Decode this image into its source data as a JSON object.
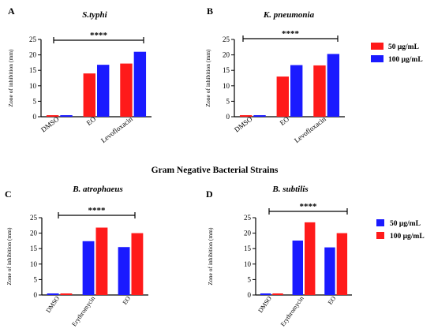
{
  "section_title": "Gram Negative Bacterial Strains",
  "colors": {
    "red": "#ff1a1a",
    "blue": "#1a1aff"
  },
  "legends": [
    {
      "entries": [
        {
          "label": "50 μg/mL",
          "color": "#ff1a1a"
        },
        {
          "label": "100 μg/mL",
          "color": "#1a1aff"
        }
      ]
    },
    {
      "entries": [
        {
          "label": "50 μg/mL",
          "color": "#1a1aff"
        },
        {
          "label": "100 μg/mL",
          "color": "#ff1a1a"
        }
      ]
    }
  ],
  "chart_data": [
    {
      "panel": "A",
      "title": "S.typhi",
      "type": "bar",
      "categories": [
        "DMSO",
        "EO",
        "Levofloxacin"
      ],
      "series": [
        {
          "name": "50 μg/mL",
          "color": "#ff1a1a",
          "values": [
            0.5,
            14,
            17.2
          ]
        },
        {
          "name": "100 μg/mL",
          "color": "#1a1aff",
          "values": [
            0.5,
            16.8,
            21
          ]
        }
      ],
      "ylabel": "Zone of inhibition (mm)",
      "ylim": [
        0,
        25
      ],
      "yticks": [
        0,
        5,
        10,
        15,
        20,
        25
      ],
      "significance": "****"
    },
    {
      "panel": "B",
      "title": "K. pneumonia",
      "type": "bar",
      "categories": [
        "DMSO",
        "EO",
        "Levofloxacin"
      ],
      "series": [
        {
          "name": "50 μg/mL",
          "color": "#ff1a1a",
          "values": [
            0.5,
            13,
            16.6
          ]
        },
        {
          "name": "100 μg/mL",
          "color": "#1a1aff",
          "values": [
            0.5,
            16.7,
            20.3
          ]
        }
      ],
      "ylabel": "Zone of inhibition (mm)",
      "ylim": [
        0,
        25
      ],
      "yticks": [
        0,
        5,
        10,
        15,
        20,
        25
      ],
      "significance": "****"
    },
    {
      "panel": "C",
      "title": "B. atrophaeus",
      "type": "bar",
      "categories": [
        "DMSO",
        "Erythromycin",
        "EO"
      ],
      "series": [
        {
          "name": "50 μg/mL",
          "color": "#1a1aff",
          "values": [
            0.5,
            17.4,
            15.5
          ]
        },
        {
          "name": "100 μg/mL",
          "color": "#ff1a1a",
          "values": [
            0.5,
            21.8,
            20
          ]
        }
      ],
      "ylabel": "Zone of inhibition (mm)",
      "ylim": [
        0,
        25
      ],
      "yticks": [
        0,
        5,
        10,
        15,
        20,
        25
      ],
      "significance": "****"
    },
    {
      "panel": "D",
      "title": "B. subtilis",
      "type": "bar",
      "categories": [
        "DMSO",
        "Erythromycin",
        "EO"
      ],
      "series": [
        {
          "name": "50 μg/mL",
          "color": "#1a1aff",
          "values": [
            0.5,
            17.6,
            15.4
          ]
        },
        {
          "name": "100 μg/mL",
          "color": "#ff1a1a",
          "values": [
            0.5,
            23.5,
            20
          ]
        }
      ],
      "ylabel": "Zone of inhibition (mm)",
      "ylim": [
        0,
        25
      ],
      "yticks": [
        0,
        5,
        10,
        15,
        20,
        25
      ],
      "significance": "****"
    }
  ]
}
